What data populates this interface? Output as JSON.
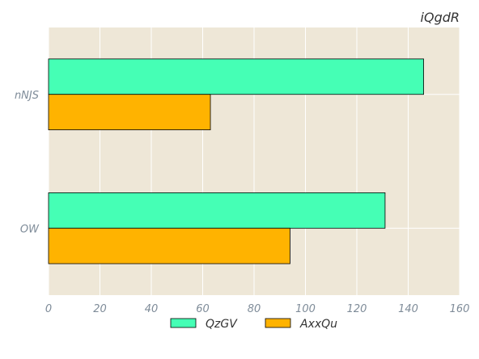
{
  "chart_data": {
    "type": "bar",
    "orientation": "horizontal",
    "title": "iQgdR",
    "xlabel": "",
    "ylabel": "",
    "categories": [
      "nNJS",
      "OW"
    ],
    "series": [
      {
        "name": "QzGV",
        "values": [
          146,
          131
        ]
      },
      {
        "name": "AxxQu",
        "values": [
          63,
          94
        ]
      }
    ],
    "xlim": [
      0,
      160
    ],
    "xticks": [
      "0",
      "20",
      "40",
      "60",
      "80",
      "100",
      "120",
      "140",
      "160"
    ],
    "grid": true,
    "legend_position": "bottom-center"
  },
  "colors": {
    "plot_background": "#eee7d7",
    "grid": "#ffffff",
    "QzGV": "#45ffb5",
    "AxxQu": "#ffb300",
    "tick_text": "#7f8c99"
  }
}
